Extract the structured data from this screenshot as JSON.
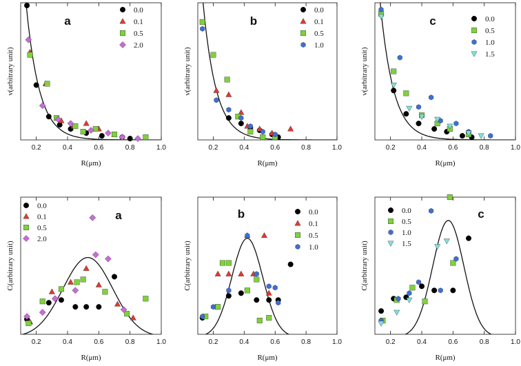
{
  "colors": {
    "0.0": "#000000",
    "0.1": "#e03a2f",
    "0.5": "#7ed23a",
    "2.0": "#c86bd8",
    "1.0": "#3d6fd6",
    "1.5": "#7fe0d8"
  },
  "chart_data": [
    {
      "type": "scatter",
      "panel": "a",
      "title": "a",
      "xlabel": "R(μm)",
      "ylabel": "ν(arbitrary unit)",
      "xlim": [
        0.1,
        1.0
      ],
      "ylim": [
        0,
        1.0
      ],
      "xticks": [
        "0.2",
        "0.4",
        "0.6",
        "0.8",
        "1.0"
      ],
      "legend_position": "top-right",
      "fit_curve": "decay",
      "series": [
        {
          "name": "0.0",
          "marker": "circle",
          "points": [
            [
              0.14,
              0.98
            ],
            [
              0.2,
              0.4
            ],
            [
              0.28,
              0.17
            ],
            [
              0.35,
              0.11
            ],
            [
              0.42,
              0.08
            ],
            [
              0.52,
              0.05
            ],
            [
              0.62,
              0.03
            ],
            [
              0.75,
              0.02
            ],
            [
              0.8,
              0.01
            ]
          ]
        },
        {
          "name": "0.1",
          "marker": "triangle",
          "points": [
            [
              0.16,
              0.64
            ],
            [
              0.26,
              0.41
            ],
            [
              0.36,
              0.14
            ],
            [
              0.44,
              0.1
            ],
            [
              0.52,
              0.12
            ],
            [
              0.6,
              0.08
            ],
            [
              0.7,
              0.04
            ]
          ]
        },
        {
          "name": "0.5",
          "marker": "square",
          "points": [
            [
              0.16,
              0.62
            ],
            [
              0.27,
              0.41
            ],
            [
              0.33,
              0.16
            ],
            [
              0.45,
              0.1
            ],
            [
              0.5,
              0.06
            ],
            [
              0.58,
              0.08
            ],
            [
              0.7,
              0.04
            ],
            [
              0.9,
              0.02
            ]
          ]
        },
        {
          "name": "2.0",
          "marker": "diamond",
          "points": [
            [
              0.15,
              0.73
            ],
            [
              0.24,
              0.25
            ],
            [
              0.34,
              0.15
            ],
            [
              0.42,
              0.12
            ],
            [
              0.55,
              0.07
            ],
            [
              0.66,
              0.05
            ],
            [
              0.75,
              0.02
            ],
            [
              0.85,
              0.01
            ]
          ]
        }
      ]
    },
    {
      "type": "scatter",
      "panel": "b",
      "title": "b",
      "xlabel": "R(μm)",
      "ylabel": "ν(arbitrary unit)",
      "xlim": [
        0.1,
        1.0
      ],
      "ylim": [
        0,
        1.0
      ],
      "xticks": [
        "0.2",
        "0.4",
        "0.6",
        "0.8",
        "1.0"
      ],
      "legend_position": "top-right",
      "fit_curve": "decay",
      "series": [
        {
          "name": "0.0",
          "marker": "circle",
          "points": [
            [
              0.3,
              0.16
            ],
            [
              0.38,
              0.12
            ],
            [
              0.44,
              0.09
            ],
            [
              0.5,
              0.07
            ],
            [
              0.58,
              0.04
            ],
            [
              0.62,
              0.02
            ]
          ]
        },
        {
          "name": "0.1",
          "marker": "triangle",
          "points": [
            [
              0.22,
              0.36
            ],
            [
              0.3,
              0.33
            ],
            [
              0.38,
              0.2
            ],
            [
              0.42,
              0.1
            ],
            [
              0.5,
              0.08
            ],
            [
              0.58,
              0.05
            ],
            [
              0.7,
              0.08
            ]
          ]
        },
        {
          "name": "0.5",
          "marker": "square",
          "points": [
            [
              0.13,
              0.86
            ],
            [
              0.2,
              0.62
            ],
            [
              0.29,
              0.44
            ],
            [
              0.36,
              0.17
            ],
            [
              0.44,
              0.06
            ],
            [
              0.52,
              0.02
            ],
            [
              0.6,
              0.02
            ]
          ]
        },
        {
          "name": "1.0",
          "marker": "hexagon",
          "points": [
            [
              0.13,
              0.81
            ],
            [
              0.22,
              0.29
            ],
            [
              0.3,
              0.22
            ],
            [
              0.38,
              0.16
            ],
            [
              0.44,
              0.1
            ],
            [
              0.52,
              0.06
            ],
            [
              0.6,
              0.04
            ]
          ]
        }
      ]
    },
    {
      "type": "scatter",
      "panel": "c",
      "title": "c",
      "xlabel": "R(μm)",
      "ylabel": "ν(arbitrary unit)",
      "xlim": [
        0.1,
        1.0
      ],
      "ylim": [
        0,
        1.0
      ],
      "xticks": [
        "0.2",
        "0.4",
        "0.6",
        "0.8",
        "1.0"
      ],
      "legend_position": "top-right",
      "fit_curve": "decay",
      "series": [
        {
          "name": "0.0",
          "marker": "circle",
          "points": [
            [
              0.22,
              0.36
            ],
            [
              0.3,
              0.19
            ],
            [
              0.38,
              0.12
            ],
            [
              0.48,
              0.08
            ],
            [
              0.56,
              0.06
            ],
            [
              0.66,
              0.03
            ],
            [
              0.72,
              0.02
            ]
          ]
        },
        {
          "name": "0.5",
          "marker": "square",
          "points": [
            [
              0.14,
              0.92
            ],
            [
              0.22,
              0.5
            ],
            [
              0.3,
              0.34
            ],
            [
              0.4,
              0.18
            ],
            [
              0.5,
              0.12
            ],
            [
              0.58,
              0.08
            ],
            [
              0.7,
              0.04
            ]
          ]
        },
        {
          "name": "1.0",
          "marker": "hexagon",
          "points": [
            [
              0.14,
              0.95
            ],
            [
              0.26,
              0.6
            ],
            [
              0.38,
              0.24
            ],
            [
              0.46,
              0.31
            ],
            [
              0.52,
              0.14
            ],
            [
              0.62,
              0.12
            ],
            [
              0.7,
              0.06
            ],
            [
              0.84,
              0.03
            ]
          ]
        },
        {
          "name": "1.5",
          "marker": "triangle-down",
          "points": [
            [
              0.14,
              0.9
            ],
            [
              0.22,
              0.4
            ],
            [
              0.32,
              0.23
            ],
            [
              0.4,
              0.17
            ],
            [
              0.5,
              0.15
            ],
            [
              0.58,
              0.1
            ],
            [
              0.7,
              0.05
            ],
            [
              0.78,
              0.03
            ]
          ]
        }
      ]
    },
    {
      "type": "scatter",
      "panel": "a",
      "title": "a",
      "xlabel": "R(μm)",
      "ylabel": "C(arbitrary unit)",
      "xlim": [
        0.1,
        1.0
      ],
      "ylim": [
        0,
        1.0
      ],
      "xticks": [
        "0.2",
        "0.4",
        "0.6",
        "0.8",
        "1.0"
      ],
      "legend_position": "top-left",
      "fit_curve": "peak",
      "series": [
        {
          "name": "0.0",
          "marker": "circle",
          "points": [
            [
              0.14,
              0.11
            ],
            [
              0.28,
              0.23
            ],
            [
              0.36,
              0.25
            ],
            [
              0.45,
              0.2
            ],
            [
              0.52,
              0.2
            ],
            [
              0.6,
              0.2
            ],
            [
              0.7,
              0.42
            ]
          ]
        },
        {
          "name": "0.1",
          "marker": "triangle",
          "points": [
            [
              0.16,
              0.09
            ],
            [
              0.3,
              0.31
            ],
            [
              0.42,
              0.38
            ],
            [
              0.52,
              0.48
            ],
            [
              0.6,
              0.36
            ],
            [
              0.72,
              0.22
            ],
            [
              0.82,
              0.12
            ]
          ]
        },
        {
          "name": "0.5",
          "marker": "square",
          "points": [
            [
              0.15,
              0.08
            ],
            [
              0.24,
              0.24
            ],
            [
              0.36,
              0.33
            ],
            [
              0.46,
              0.38
            ],
            [
              0.5,
              0.4
            ],
            [
              0.64,
              0.31
            ],
            [
              0.78,
              0.15
            ],
            [
              0.9,
              0.26
            ]
          ]
        },
        {
          "name": "2.0",
          "marker": "diamond",
          "points": [
            [
              0.14,
              0.13
            ],
            [
              0.24,
              0.16
            ],
            [
              0.32,
              0.26
            ],
            [
              0.45,
              0.32
            ],
            [
              0.56,
              0.85
            ],
            [
              0.58,
              0.58
            ],
            [
              0.66,
              0.55
            ],
            [
              0.76,
              0.18
            ]
          ]
        }
      ]
    },
    {
      "type": "scatter",
      "panel": "b",
      "title": "b",
      "xlabel": "R(μm)",
      "ylabel": "C(arbitrary unit)",
      "xlim": [
        0.1,
        1.0
      ],
      "ylim": [
        0,
        1.0
      ],
      "xticks": [
        "0.2",
        "0.4",
        "0.6",
        "0.8",
        "1.0"
      ],
      "legend_position": "top-right",
      "fit_curve": "peak",
      "series": [
        {
          "name": "0.0",
          "marker": "circle",
          "points": [
            [
              0.13,
              0.12
            ],
            [
              0.22,
              0.2
            ],
            [
              0.3,
              0.28
            ],
            [
              0.38,
              0.3
            ],
            [
              0.48,
              0.25
            ],
            [
              0.56,
              0.25
            ],
            [
              0.62,
              0.25
            ],
            [
              0.7,
              0.51
            ]
          ]
        },
        {
          "name": "0.1",
          "marker": "triangle",
          "points": [
            [
              0.23,
              0.44
            ],
            [
              0.3,
              0.44
            ],
            [
              0.38,
              0.44
            ],
            [
              0.42,
              0.72
            ],
            [
              0.46,
              0.44
            ],
            [
              0.53,
              0.72
            ],
            [
              0.56,
              0.3
            ]
          ]
        },
        {
          "name": "0.5",
          "marker": "square",
          "points": [
            [
              0.15,
              0.13
            ],
            [
              0.23,
              0.2
            ],
            [
              0.26,
              0.52
            ],
            [
              0.3,
              0.52
            ],
            [
              0.42,
              0.32
            ],
            [
              0.48,
              0.4
            ],
            [
              0.5,
              0.1
            ],
            [
              0.56,
              0.12
            ]
          ]
        },
        {
          "name": "1.0",
          "marker": "hexagon",
          "points": [
            [
              0.13,
              0.13
            ],
            [
              0.2,
              0.2
            ],
            [
              0.3,
              0.32
            ],
            [
              0.42,
              0.72
            ],
            [
              0.48,
              0.44
            ],
            [
              0.56,
              0.35
            ],
            [
              0.6,
              0.34
            ],
            [
              0.62,
              0.23
            ]
          ]
        }
      ]
    },
    {
      "type": "scatter",
      "panel": "c",
      "title": "c",
      "xlabel": "R(μm)",
      "ylabel": "C(arbitrary unit)",
      "xlim": [
        0.1,
        1.0
      ],
      "ylim": [
        0,
        1.0
      ],
      "xticks": [
        "0.2",
        "0.4",
        "0.6",
        "0.8",
        "1.0"
      ],
      "legend_position": "top-left",
      "fit_curve": "peak",
      "series": [
        {
          "name": "0.0",
          "marker": "circle",
          "points": [
            [
              0.14,
              0.17
            ],
            [
              0.22,
              0.26
            ],
            [
              0.3,
              0.27
            ],
            [
              0.4,
              0.35
            ],
            [
              0.48,
              0.32
            ],
            [
              0.6,
              0.32
            ],
            [
              0.7,
              0.7
            ]
          ]
        },
        {
          "name": "0.5",
          "marker": "square",
          "points": [
            [
              0.15,
              0.1
            ],
            [
              0.24,
              0.25
            ],
            [
              0.34,
              0.34
            ],
            [
              0.42,
              0.24
            ],
            [
              0.58,
              1.0
            ],
            [
              0.6,
              0.52
            ]
          ]
        },
        {
          "name": "1.0",
          "marker": "hexagon",
          "points": [
            [
              0.14,
              0.1
            ],
            [
              0.25,
              0.26
            ],
            [
              0.32,
              0.3
            ],
            [
              0.38,
              0.38
            ],
            [
              0.46,
              0.9
            ],
            [
              0.52,
              0.32
            ],
            [
              0.62,
              0.55
            ]
          ]
        },
        {
          "name": "1.5",
          "marker": "triangle-down",
          "points": [
            [
              0.14,
              0.08
            ],
            [
              0.24,
              0.16
            ],
            [
              0.32,
              0.25
            ],
            [
              0.5,
              0.64
            ],
            [
              0.56,
              0.68
            ]
          ]
        }
      ]
    }
  ]
}
